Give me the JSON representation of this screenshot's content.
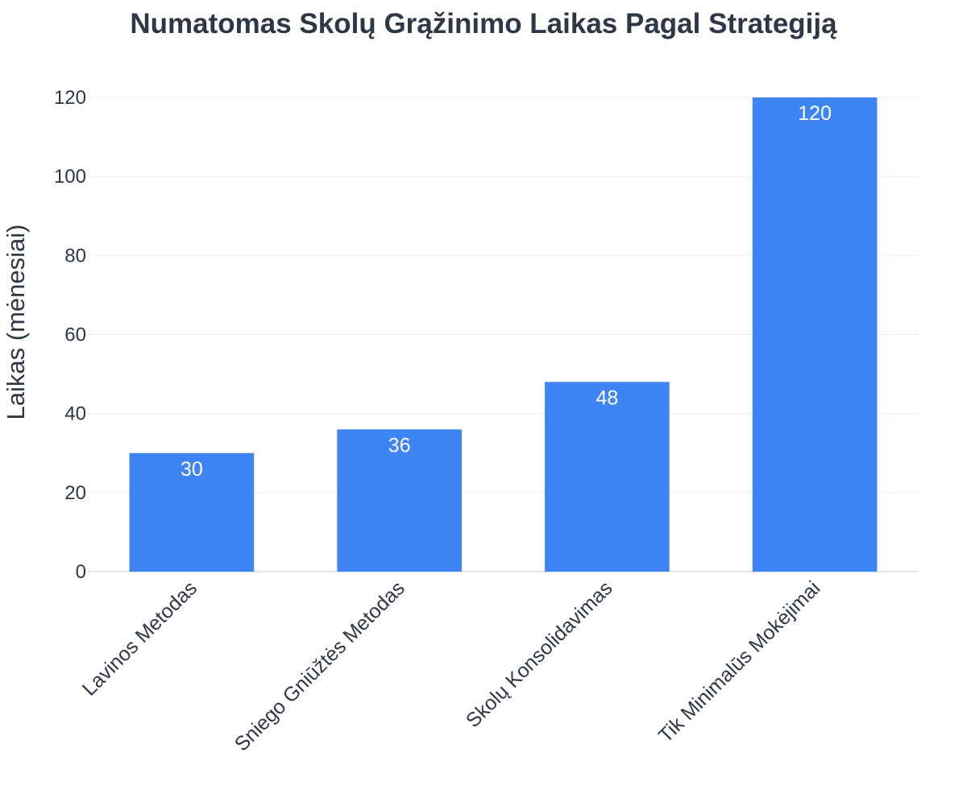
{
  "chart_data": {
    "type": "bar",
    "title": "Numatomas Skolų Grąžinimo Laikas Pagal Strategiją",
    "xlabel": "",
    "ylabel": "Laikas (mėnesiai)",
    "categories": [
      "Lavinos Metodas",
      "Sniego Gniūžtės Metodas",
      "Skolų Konsolidavimas",
      "Tik Minimalūs Mokėjimai"
    ],
    "values": [
      30,
      36,
      48,
      120
    ],
    "ylim": [
      0,
      120
    ],
    "yticks": [
      0,
      20,
      40,
      60,
      80,
      100,
      120
    ],
    "grid": true,
    "legend": "none",
    "bar_color": "#3e84f5",
    "data_labels": true
  }
}
